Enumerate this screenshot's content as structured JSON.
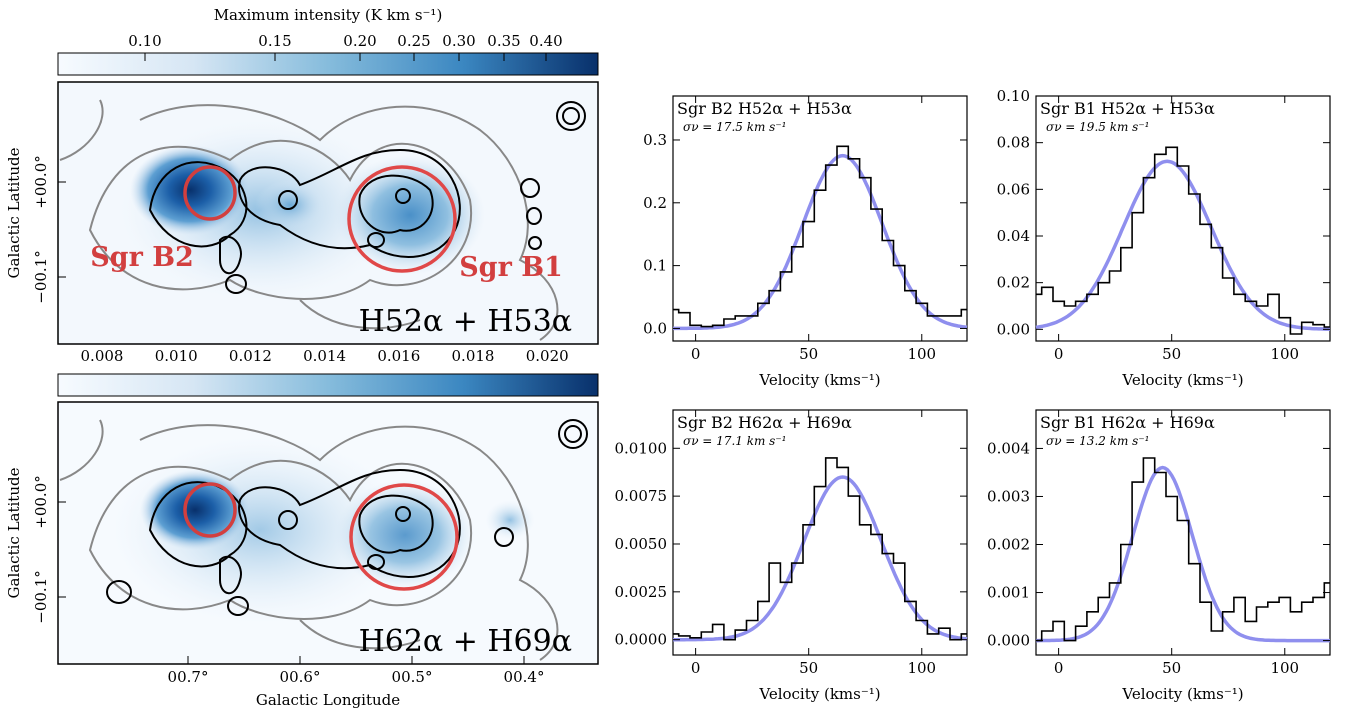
{
  "colorbar": {
    "label": "Maximum intensity (K km s⁻¹)",
    "top_ticks": [
      "0.10",
      "0.15",
      "0.20",
      "0.25",
      "0.30",
      "0.35",
      "0.40"
    ],
    "bottom_ticks": [
      "0.008",
      "0.010",
      "0.012",
      "0.014",
      "0.016",
      "0.018",
      "0.020"
    ]
  },
  "maps": {
    "ylabel": "Galactic Latitude",
    "xlabel": "Galactic Longitude",
    "yticks": [
      "+00.0°",
      "−00.1°"
    ],
    "xticks": [
      "00.7°",
      "00.6°",
      "00.5°",
      "00.4°"
    ],
    "top_label": "H52α + H53α",
    "bottom_label": "H62α + H69α",
    "sgr_b2": "Sgr B2",
    "sgr_b1": "Sgr B1"
  },
  "spectra": {
    "xlabel": "Velocity (kms⁻¹)",
    "xticks": [
      "0",
      "50",
      "100"
    ],
    "panels": [
      {
        "title": "Sgr B2 H52α + H53α",
        "sigma": "σν = 17.5 km s⁻¹",
        "yticks": [
          "0.0",
          "0.1",
          "0.2",
          "0.3"
        ]
      },
      {
        "title": "Sgr B1 H52α + H53α",
        "sigma": "σν = 19.5 km s⁻¹",
        "yticks": [
          "0.00",
          "0.02",
          "0.04",
          "0.06",
          "0.08",
          "0.10"
        ]
      },
      {
        "title": "Sgr B2 H62α + H69α",
        "sigma": "σν = 17.1 km s⁻¹",
        "yticks": [
          "0.0000",
          "0.0025",
          "0.0050",
          "0.0075",
          "0.0100"
        ]
      },
      {
        "title": "Sgr B1 H62α + H69α",
        "sigma": "σν = 13.2 km s⁻¹",
        "yticks": [
          "0.000",
          "0.001",
          "0.002",
          "0.003",
          "0.004"
        ]
      }
    ]
  },
  "chart_data": [
    {
      "type": "line",
      "title": "Sgr B2 H52α + H53α",
      "xlabel": "Velocity (kms⁻¹)",
      "xlim": [
        -10,
        120
      ],
      "ylim": [
        -0.02,
        0.37
      ],
      "fit": {
        "amplitude": 0.275,
        "center": 65,
        "sigma": 17.5
      },
      "x": [
        -10,
        -5,
        0,
        5,
        10,
        15,
        20,
        25,
        30,
        35,
        40,
        45,
        50,
        55,
        60,
        65,
        70,
        75,
        80,
        85,
        90,
        95,
        100,
        105,
        110,
        115,
        120
      ],
      "y": [
        0.03,
        0.025,
        0.005,
        0.003,
        0.005,
        0.015,
        0.02,
        0.02,
        0.04,
        0.06,
        0.09,
        0.13,
        0.17,
        0.22,
        0.26,
        0.29,
        0.27,
        0.24,
        0.19,
        0.14,
        0.1,
        0.06,
        0.04,
        0.02,
        0.02,
        0.02,
        0.03
      ]
    },
    {
      "type": "line",
      "title": "Sgr B1 H52α + H53α",
      "xlabel": "Velocity (kms⁻¹)",
      "xlim": [
        -10,
        120
      ],
      "ylim": [
        -0.005,
        0.1
      ],
      "fit": {
        "amplitude": 0.072,
        "center": 48,
        "sigma": 19.5
      },
      "x": [
        -10,
        -5,
        0,
        5,
        10,
        15,
        20,
        25,
        30,
        35,
        40,
        45,
        50,
        55,
        60,
        65,
        70,
        75,
        80,
        85,
        90,
        95,
        100,
        105,
        110,
        115,
        120
      ],
      "y": [
        0.015,
        0.018,
        0.012,
        0.01,
        0.012,
        0.015,
        0.02,
        0.025,
        0.035,
        0.05,
        0.065,
        0.075,
        0.078,
        0.07,
        0.058,
        0.045,
        0.035,
        0.022,
        0.015,
        0.012,
        0.01,
        0.015,
        0.005,
        -0.002,
        0.003,
        0.002,
        0.001
      ]
    },
    {
      "type": "line",
      "title": "Sgr B2 H62α + H69α",
      "xlabel": "Velocity (kms⁻¹)",
      "xlim": [
        -10,
        120
      ],
      "ylim": [
        -0.0008,
        0.012
      ],
      "fit": {
        "amplitude": 0.0085,
        "center": 65,
        "sigma": 17.1
      },
      "x": [
        -10,
        -5,
        0,
        5,
        10,
        15,
        20,
        25,
        30,
        35,
        40,
        45,
        50,
        55,
        60,
        65,
        70,
        75,
        80,
        85,
        90,
        95,
        100,
        105,
        110,
        115,
        120
      ],
      "y": [
        0.0003,
        0.0002,
        0.0001,
        0.0004,
        0.0008,
        0.0,
        0.0005,
        0.001,
        0.002,
        0.004,
        0.003,
        0.004,
        0.006,
        0.008,
        0.0095,
        0.009,
        0.0075,
        0.006,
        0.0055,
        0.0045,
        0.004,
        0.002,
        0.001,
        0.0003,
        0.0006,
        0.0,
        0.0003
      ]
    },
    {
      "type": "line",
      "title": "Sgr B1 H62α + H69α",
      "xlabel": "Velocity (kms⁻¹)",
      "xlim": [
        -10,
        120
      ],
      "ylim": [
        -0.0003,
        0.0048
      ],
      "fit": {
        "amplitude": 0.0036,
        "center": 46,
        "sigma": 13.2
      },
      "x": [
        -10,
        -5,
        0,
        5,
        10,
        15,
        20,
        25,
        30,
        35,
        40,
        45,
        50,
        55,
        60,
        65,
        70,
        75,
        80,
        85,
        90,
        95,
        100,
        105,
        110,
        115,
        120
      ],
      "y": [
        0.0,
        0.0002,
        0.0004,
        0.0,
        0.0003,
        0.0006,
        0.0009,
        0.0012,
        0.002,
        0.0033,
        0.0038,
        0.0035,
        0.003,
        0.0025,
        0.0016,
        0.0008,
        0.0002,
        0.0006,
        0.0009,
        0.0004,
        0.0007,
        0.0008,
        0.0009,
        0.0006,
        0.0008,
        0.0009,
        0.0012
      ]
    }
  ]
}
